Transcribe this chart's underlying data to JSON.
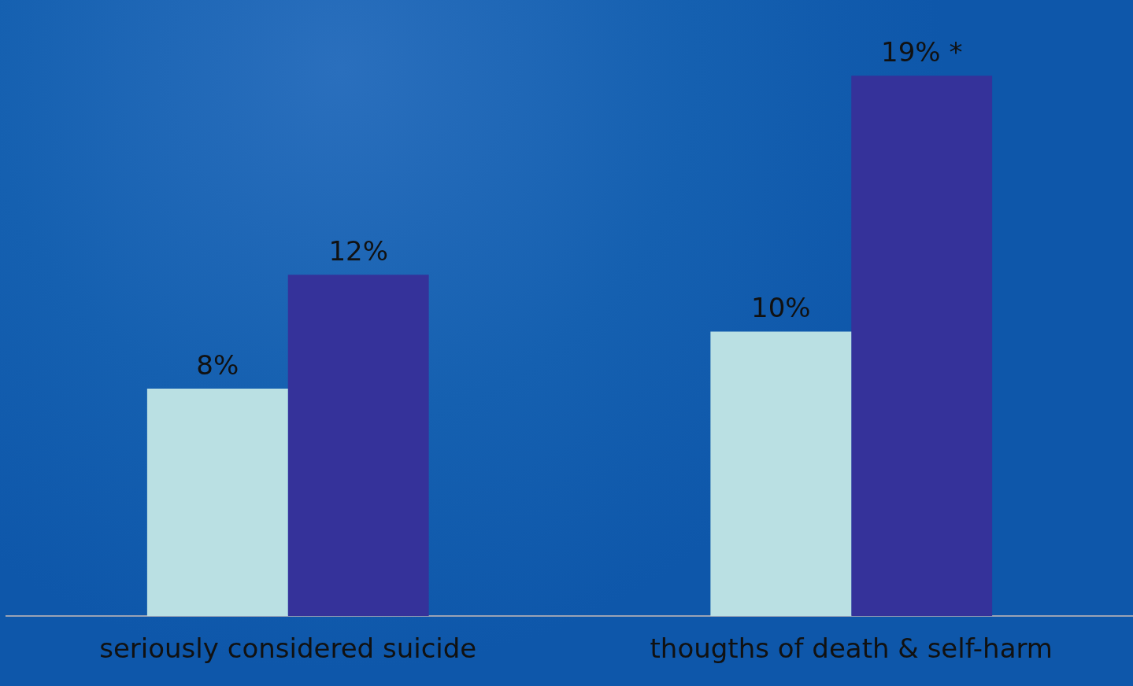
{
  "chart_data": {
    "type": "bar",
    "categories": [
      "seriously considered suicide",
      "thougths of death & self-harm"
    ],
    "series": [
      {
        "color": "#bae0e3",
        "values": [
          8,
          10
        ],
        "value_labels": [
          "8%",
          "10%"
        ]
      },
      {
        "color": "#35329a",
        "values": [
          12,
          19
        ],
        "value_labels": [
          "12%",
          "19% *"
        ]
      }
    ],
    "grid": false,
    "legend": false,
    "tick_labels": "x"
  }
}
